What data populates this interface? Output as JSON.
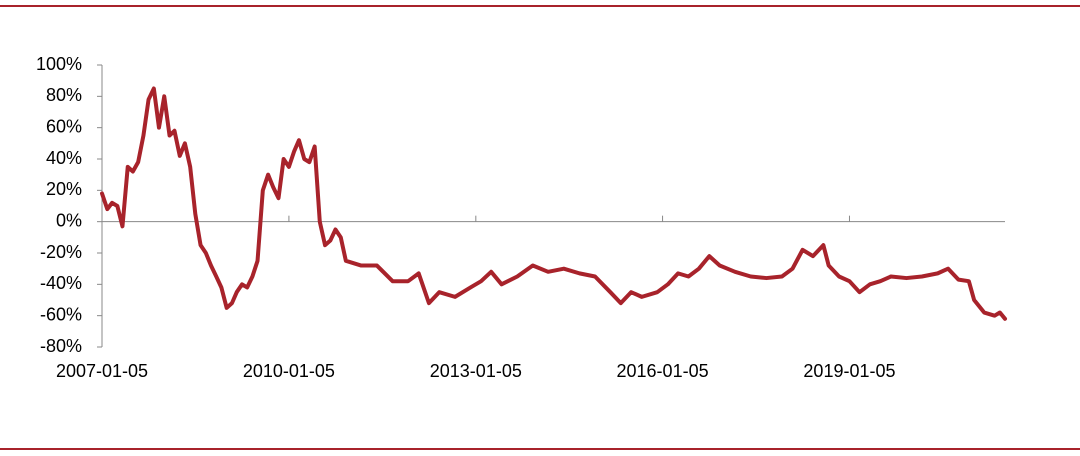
{
  "chart_data": {
    "type": "line",
    "color": "#a8232b",
    "x": [
      "2007-01-05",
      "2007-02-05",
      "2007-03-05",
      "2007-04-05",
      "2007-05-05",
      "2007-06-05",
      "2007-07-05",
      "2007-08-05",
      "2007-09-05",
      "2007-10-05",
      "2007-11-05",
      "2007-12-05",
      "2008-01-05",
      "2008-02-05",
      "2008-03-05",
      "2008-04-05",
      "2008-05-05",
      "2008-06-05",
      "2008-07-05",
      "2008-08-05",
      "2008-09-05",
      "2008-10-05",
      "2008-11-05",
      "2008-12-05",
      "2009-01-05",
      "2009-02-05",
      "2009-03-05",
      "2009-04-05",
      "2009-05-05",
      "2009-06-05",
      "2009-07-05",
      "2009-08-05",
      "2009-09-05",
      "2009-10-05",
      "2009-11-05",
      "2009-12-05",
      "2010-01-05",
      "2010-02-05",
      "2010-03-05",
      "2010-04-05",
      "2010-05-05",
      "2010-06-05",
      "2010-07-05",
      "2010-08-05",
      "2010-09-05",
      "2010-10-05",
      "2010-11-05",
      "2010-12-05",
      "2011-03-05",
      "2011-06-05",
      "2011-09-05",
      "2011-12-05",
      "2012-02-05",
      "2012-04-05",
      "2012-06-05",
      "2012-09-05",
      "2012-12-05",
      "2013-02-05",
      "2013-04-05",
      "2013-06-05",
      "2013-09-05",
      "2013-12-05",
      "2014-03-05",
      "2014-06-05",
      "2014-09-05",
      "2014-12-05",
      "2015-03-05",
      "2015-05-05",
      "2015-07-05",
      "2015-09-05",
      "2015-12-05",
      "2016-02-05",
      "2016-04-05",
      "2016-06-05",
      "2016-08-05",
      "2016-10-05",
      "2016-12-05",
      "2017-03-05",
      "2017-06-05",
      "2017-09-05",
      "2017-12-05",
      "2018-02-05",
      "2018-04-05",
      "2018-06-05",
      "2018-08-05",
      "2018-09-05",
      "2018-11-05",
      "2019-01-05",
      "2019-03-05",
      "2019-05-05",
      "2019-07-05",
      "2019-09-05",
      "2019-12-05",
      "2020-03-05",
      "2020-06-05",
      "2020-08-05",
      "2020-10-05",
      "2020-12-05",
      "2021-01-05",
      "2021-03-05",
      "2021-05-05",
      "2021-06-05",
      "2021-07-05"
    ],
    "values": [
      18,
      8,
      12,
      10,
      -3,
      35,
      32,
      38,
      55,
      78,
      85,
      60,
      80,
      55,
      58,
      42,
      50,
      35,
      5,
      -15,
      -20,
      -28,
      -35,
      -42,
      -55,
      -52,
      -45,
      -40,
      -42,
      -35,
      -25,
      20,
      30,
      22,
      15,
      40,
      35,
      45,
      52,
      40,
      38,
      48,
      0,
      -15,
      -12,
      -5,
      -10,
      -25,
      -28,
      -28,
      -38,
      -38,
      -33,
      -52,
      -45,
      -48,
      -42,
      -38,
      -32,
      -40,
      -35,
      -28,
      -32,
      -30,
      -33,
      -35,
      -45,
      -52,
      -45,
      -48,
      -45,
      -40,
      -33,
      -35,
      -30,
      -22,
      -28,
      -32,
      -35,
      -36,
      -35,
      -30,
      -18,
      -22,
      -15,
      -28,
      -35,
      -38,
      -45,
      -40,
      -38,
      -35,
      -36,
      -35,
      -33,
      -30,
      -37,
      -38,
      -50,
      -58,
      -60,
      -58,
      -62
    ],
    "xlim": [
      "2007-01-05",
      "2021-07-05"
    ],
    "xticks": [
      "2007-01-05",
      "2010-01-05",
      "2013-01-05",
      "2016-01-05",
      "2019-01-05"
    ],
    "ylim": [
      -80,
      100
    ],
    "yticks": [
      {
        "value": 100,
        "label": "100%"
      },
      {
        "value": 80,
        "label": "80%"
      },
      {
        "value": 60,
        "label": "60%"
      },
      {
        "value": 40,
        "label": "40%"
      },
      {
        "value": 20,
        "label": "20%"
      },
      {
        "value": 0,
        "label": "0%"
      },
      {
        "value": -20,
        "label": "-20%"
      },
      {
        "value": -40,
        "label": "-40%"
      },
      {
        "value": -60,
        "label": "-60%"
      },
      {
        "value": -80,
        "label": "-80%"
      }
    ]
  }
}
